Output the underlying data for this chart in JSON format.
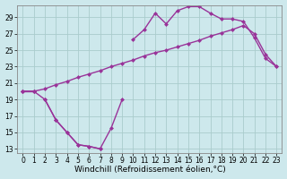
{
  "bg_color": "#cde8ec",
  "grid_color": "#aacccc",
  "line_color": "#993399",
  "marker": "D",
  "markersize": 2.5,
  "linewidth": 1.0,
  "xlabel": "Windchill (Refroidissement éolien,°C)",
  "xlabel_fontsize": 6.5,
  "xlim": [
    -0.5,
    23.5
  ],
  "ylim": [
    12.5,
    30.5
  ],
  "xticks": [
    0,
    1,
    2,
    3,
    4,
    5,
    6,
    7,
    8,
    9,
    10,
    11,
    12,
    13,
    14,
    15,
    16,
    17,
    18,
    19,
    20,
    21,
    22,
    23
  ],
  "yticks": [
    13,
    15,
    17,
    19,
    21,
    23,
    25,
    27,
    29
  ],
  "tick_fontsize": 5.5,
  "series1_x": [
    0,
    1,
    2,
    3,
    4,
    5,
    6,
    7,
    8,
    9,
    10,
    11,
    12,
    13,
    14,
    15,
    16,
    17,
    18,
    19,
    20,
    21,
    22,
    23
  ],
  "series1_y": [
    20.0,
    20.0,
    19.0,
    16.5,
    15.0,
    13.5,
    13.3,
    13.0,
    null,
    null,
    null,
    null,
    null,
    null,
    null,
    null,
    null,
    null,
    null,
    null,
    null,
    null,
    null,
    null
  ],
  "series2_x": [
    0,
    1,
    2,
    3,
    4,
    5,
    6,
    7,
    8,
    9,
    10,
    11,
    12,
    13,
    14,
    15,
    16,
    17,
    18,
    19,
    20,
    21,
    22,
    23
  ],
  "series2_y": [
    20.0,
    20.0,
    null,
    null,
    null,
    null,
    null,
    null,
    null,
    null,
    26.3,
    27.5,
    29.5,
    28.2,
    29.8,
    30.3,
    30.3,
    29.5,
    28.8,
    28.8,
    28.5,
    26.5,
    24.0,
    23.0
  ],
  "series3_x": [
    0,
    1,
    2,
    3,
    4,
    5,
    6,
    7,
    8,
    9,
    10,
    11,
    12,
    13,
    14,
    15,
    16,
    17,
    18,
    19,
    20,
    21,
    22,
    23
  ],
  "series3_y": [
    20.0,
    20.0,
    20.3,
    20.8,
    21.2,
    21.7,
    22.1,
    22.5,
    23.0,
    23.4,
    23.8,
    24.3,
    24.7,
    25.0,
    25.4,
    25.8,
    26.2,
    26.7,
    27.1,
    27.5,
    28.0,
    27.0,
    24.5,
    23.0
  ],
  "series4_x": [
    2,
    3,
    4,
    5,
    6,
    7,
    8,
    9
  ],
  "series4_y": [
    19.0,
    16.5,
    15.0,
    13.5,
    13.3,
    13.0,
    15.5,
    19.0
  ]
}
